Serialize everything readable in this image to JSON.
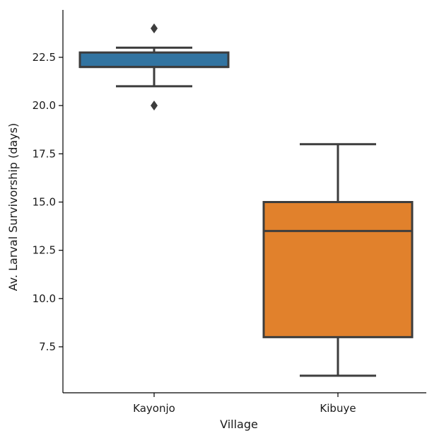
{
  "chart_data": {
    "type": "box",
    "xlabel": "Village",
    "ylabel": "Av. Larval Survivorship (days)",
    "ylim": [
      5,
      25
    ],
    "yticks": [
      7.5,
      10.0,
      12.5,
      15.0,
      17.5,
      20.0,
      22.5
    ],
    "categories": [
      "Kayonjo",
      "Kibuye"
    ],
    "boxes": [
      {
        "category": "Kayonjo",
        "color": "#3274a1",
        "whisker_low": 21.0,
        "q1": 22.0,
        "median": 22.0,
        "q3": 22.75,
        "whisker_high": 23.0,
        "outliers": [
          20.0,
          24.0
        ]
      },
      {
        "category": "Kibuye",
        "color": "#e1812c",
        "whisker_low": 6.0,
        "q1": 8.0,
        "median": 13.5,
        "q3": 15.0,
        "whisker_high": 18.0,
        "outliers": []
      }
    ],
    "grid": false,
    "legend": "none",
    "line_color": "#3d3d3d"
  }
}
